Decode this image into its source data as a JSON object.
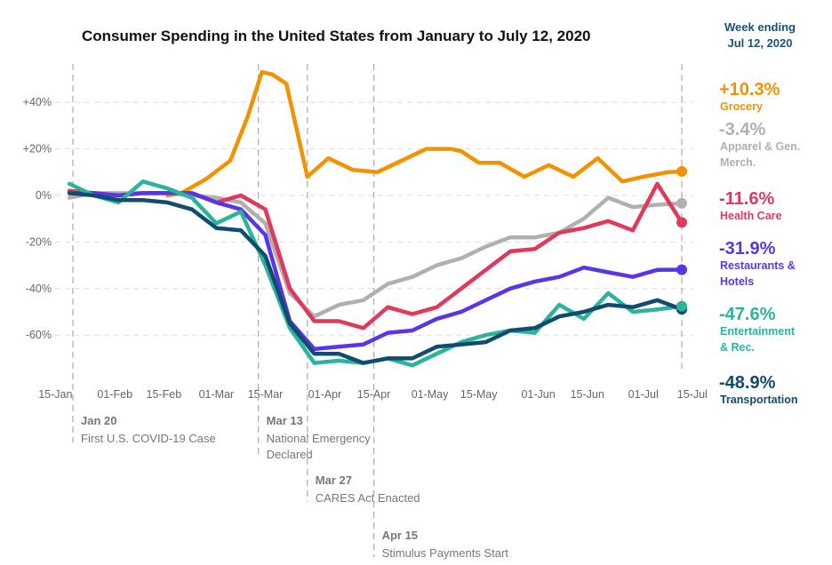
{
  "chart_data": {
    "type": "line",
    "title": "Consumer Spending in the United States from January to July 12, 2020",
    "note_line1": "Week ending",
    "note_line2": "Jul 12, 2020",
    "xlabel": "",
    "ylabel": "",
    "ylim": [
      -80,
      55
    ],
    "grid": true,
    "yticks": [
      40,
      20,
      0,
      -20,
      -40,
      -60
    ],
    "ytick_labels": [
      "+40%",
      "+20%",
      "0%",
      "-20%",
      "-40%",
      "-60%"
    ],
    "xticks": [
      "2020-01-15",
      "2020-02-01",
      "2020-02-15",
      "2020-03-01",
      "2020-03-15",
      "2020-04-01",
      "2020-04-15",
      "2020-05-01",
      "2020-05-15",
      "2020-06-01",
      "2020-06-15",
      "2020-07-01",
      "2020-07-15"
    ],
    "xtick_labels": [
      "15-Jan",
      "01-Feb",
      "15-Feb",
      "01-Mar",
      "15-Mar",
      "01-Apr",
      "15-Apr",
      "01-May",
      "15-May",
      "01-Jun",
      "15-Jun",
      "01-Jul",
      "15-Jul"
    ],
    "x": [
      "2020-01-19",
      "2020-01-26",
      "2020-02-02",
      "2020-02-09",
      "2020-02-16",
      "2020-02-23",
      "2020-03-01",
      "2020-03-08",
      "2020-03-15",
      "2020-03-22",
      "2020-03-29",
      "2020-04-05",
      "2020-04-12",
      "2020-04-19",
      "2020-04-26",
      "2020-05-03",
      "2020-05-10",
      "2020-05-17",
      "2020-05-24",
      "2020-05-31",
      "2020-06-07",
      "2020-06-14",
      "2020-06-21",
      "2020-06-28",
      "2020-07-05",
      "2020-07-12"
    ],
    "events": [
      {
        "date": "2020-01-20",
        "label": "Jan 20",
        "desc": [
          "First U.S. COVID-19 Case"
        ],
        "row": 0
      },
      {
        "date": "2020-03-13",
        "label": "Mar 13",
        "desc": [
          "National Emergency",
          "Declared"
        ],
        "row": 0
      },
      {
        "date": "2020-03-27",
        "label": "Mar 27",
        "desc": [
          "CARES Act Enacted"
        ],
        "row": 1
      },
      {
        "date": "2020-04-15",
        "label": "Apr 15",
        "desc": [
          "Stimulus Payments Start"
        ],
        "row": 2
      }
    ],
    "series": [
      {
        "name": "Grocery",
        "label_value": "+10.3%",
        "name_lines": [
          "Grocery"
        ],
        "color": "#f39200",
        "x": [
          "2020-02-16",
          "2020-02-20",
          "2020-02-27",
          "2020-03-05",
          "2020-03-10",
          "2020-03-14",
          "2020-03-17",
          "2020-03-21",
          "2020-03-27",
          "2020-04-02",
          "2020-04-09",
          "2020-04-16",
          "2020-04-23",
          "2020-04-30",
          "2020-05-07",
          "2020-05-10",
          "2020-05-15",
          "2020-05-21",
          "2020-05-28",
          "2020-06-04",
          "2020-06-11",
          "2020-06-18",
          "2020-06-25",
          "2020-07-01",
          "2020-07-08",
          "2020-07-12"
        ],
        "values": [
          0,
          1,
          7,
          15,
          34,
          53,
          52,
          48,
          8,
          16,
          11,
          10,
          15,
          20,
          20,
          19,
          14,
          14,
          8,
          13,
          8,
          16,
          6,
          8,
          10,
          10.3
        ]
      },
      {
        "name": "Apparel & Gen. Merch.",
        "label_value": "-3.4%",
        "name_lines": [
          "Apparel & Gen.",
          "Merch."
        ],
        "color": "#b0b0b0",
        "x": [
          "2020-01-19",
          "2020-01-26",
          "2020-02-02",
          "2020-02-09",
          "2020-02-16",
          "2020-02-23",
          "2020-03-01",
          "2020-03-08",
          "2020-03-15",
          "2020-03-22",
          "2020-03-29",
          "2020-04-05",
          "2020-04-12",
          "2020-04-19",
          "2020-04-26",
          "2020-05-03",
          "2020-05-10",
          "2020-05-17",
          "2020-05-24",
          "2020-05-31",
          "2020-06-07",
          "2020-06-14",
          "2020-06-21",
          "2020-06-28",
          "2020-07-05",
          "2020-07-12"
        ],
        "values": [
          -1,
          1,
          1,
          1,
          1,
          0,
          -1,
          -3,
          -12,
          -42,
          -52,
          -47,
          -45,
          -38,
          -35,
          -30,
          -27,
          -22,
          -18,
          -18,
          -16,
          -10,
          -1,
          -5,
          -4,
          -3.4
        ]
      },
      {
        "name": "Health Care",
        "label_value": "-11.6%",
        "name_lines": [
          "Health Care"
        ],
        "color": "#e0395b",
        "x": [
          "2020-01-19",
          "2020-01-26",
          "2020-02-02",
          "2020-02-09",
          "2020-02-16",
          "2020-02-23",
          "2020-03-01",
          "2020-03-08",
          "2020-03-15",
          "2020-03-22",
          "2020-03-29",
          "2020-04-05",
          "2020-04-12",
          "2020-04-19",
          "2020-04-26",
          "2020-05-03",
          "2020-05-10",
          "2020-05-17",
          "2020-05-24",
          "2020-05-31",
          "2020-06-07",
          "2020-06-14",
          "2020-06-21",
          "2020-06-28",
          "2020-07-05",
          "2020-07-12"
        ],
        "values": [
          2,
          1,
          0,
          1,
          1,
          1,
          -3,
          0,
          -6,
          -40,
          -54,
          -54,
          -57,
          -48,
          -51,
          -48,
          -40,
          -32,
          -24,
          -23,
          -16,
          -14,
          -11,
          -15,
          5,
          -11.6
        ]
      },
      {
        "name": "Restaurants & Hotels",
        "label_value": "-31.9%",
        "name_lines": [
          "Restaurants &",
          "Hotels"
        ],
        "color": "#5a35e8",
        "x": [
          "2020-01-19",
          "2020-01-26",
          "2020-02-02",
          "2020-02-09",
          "2020-02-16",
          "2020-02-23",
          "2020-03-01",
          "2020-03-08",
          "2020-03-15",
          "2020-03-22",
          "2020-03-29",
          "2020-04-05",
          "2020-04-12",
          "2020-04-19",
          "2020-04-26",
          "2020-05-03",
          "2020-05-10",
          "2020-05-17",
          "2020-05-24",
          "2020-05-31",
          "2020-06-07",
          "2020-06-14",
          "2020-06-21",
          "2020-06-28",
          "2020-07-05",
          "2020-07-12"
        ],
        "values": [
          1,
          1,
          0,
          1,
          1,
          1,
          -3,
          -6,
          -17,
          -54,
          -66,
          -65,
          -64,
          -59,
          -58,
          -53,
          -50,
          -45,
          -40,
          -37,
          -35,
          -31,
          -33,
          -35,
          -32,
          -31.9
        ]
      },
      {
        "name": "Entertainment & Rec.",
        "label_value": "-47.6%",
        "name_lines": [
          "Entertainment",
          "& Rec."
        ],
        "color": "#2bb39b",
        "x": [
          "2020-01-19",
          "2020-01-26",
          "2020-02-02",
          "2020-02-09",
          "2020-02-16",
          "2020-02-23",
          "2020-03-01",
          "2020-03-08",
          "2020-03-15",
          "2020-03-22",
          "2020-03-29",
          "2020-04-05",
          "2020-04-12",
          "2020-04-19",
          "2020-04-26",
          "2020-05-03",
          "2020-05-10",
          "2020-05-17",
          "2020-05-24",
          "2020-05-31",
          "2020-06-07",
          "2020-06-14",
          "2020-06-21",
          "2020-06-28",
          "2020-07-05",
          "2020-07-12"
        ],
        "values": [
          5,
          0,
          -3,
          6,
          3,
          -1,
          -12,
          -7,
          -30,
          -57,
          -72,
          -71,
          -72,
          -70,
          -73,
          -68,
          -63,
          -60,
          -58,
          -59,
          -47,
          -53,
          -42,
          -50,
          -49,
          -47.6
        ]
      },
      {
        "name": "Transportation",
        "label_value": "-48.9%",
        "name_lines": [
          "Transportation"
        ],
        "color": "#0f4c6e",
        "x": [
          "2020-01-19",
          "2020-01-26",
          "2020-02-02",
          "2020-02-09",
          "2020-02-16",
          "2020-02-23",
          "2020-03-01",
          "2020-03-08",
          "2020-03-15",
          "2020-03-22",
          "2020-03-29",
          "2020-04-05",
          "2020-04-12",
          "2020-04-19",
          "2020-04-26",
          "2020-05-03",
          "2020-05-10",
          "2020-05-17",
          "2020-05-24",
          "2020-05-31",
          "2020-06-07",
          "2020-06-14",
          "2020-06-21",
          "2020-06-28",
          "2020-07-05",
          "2020-07-12"
        ],
        "values": [
          1,
          0,
          -2,
          -2,
          -3,
          -6,
          -14,
          -15,
          -26,
          -55,
          -68,
          -68,
          -72,
          -70,
          -70,
          -65,
          -64,
          -63,
          -58,
          -57,
          -52,
          -50,
          -47,
          -48,
          -45,
          -48.9
        ]
      }
    ]
  }
}
